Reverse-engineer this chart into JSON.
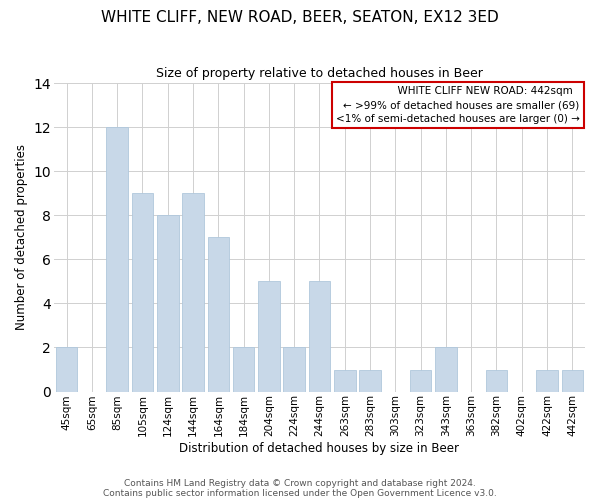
{
  "title": "WHITE CLIFF, NEW ROAD, BEER, SEATON, EX12 3ED",
  "subtitle": "Size of property relative to detached houses in Beer",
  "xlabel": "Distribution of detached houses by size in Beer",
  "ylabel": "Number of detached properties",
  "bar_color": "#c8d8e8",
  "bar_edgecolor": "#b0c8dc",
  "categories": [
    "45sqm",
    "65sqm",
    "85sqm",
    "105sqm",
    "124sqm",
    "144sqm",
    "164sqm",
    "184sqm",
    "204sqm",
    "224sqm",
    "244sqm",
    "263sqm",
    "283sqm",
    "303sqm",
    "323sqm",
    "343sqm",
    "363sqm",
    "382sqm",
    "402sqm",
    "422sqm",
    "442sqm"
  ],
  "values": [
    2,
    0,
    12,
    9,
    8,
    9,
    7,
    2,
    5,
    2,
    5,
    1,
    1,
    0,
    1,
    2,
    0,
    1,
    0,
    1,
    1
  ],
  "ylim": [
    0,
    14
  ],
  "yticks": [
    0,
    2,
    4,
    6,
    8,
    10,
    12,
    14
  ],
  "grid_color": "#d0d0d0",
  "legend_title": "WHITE CLIFF NEW ROAD: 442sqm",
  "legend_line1": "← >99% of detached houses are smaller (69)",
  "legend_line2": "<1% of semi-detached houses are larger (0) →",
  "legend_box_edgecolor": "#cc0000",
  "footnote1": "Contains HM Land Registry data © Crown copyright and database right 2024.",
  "footnote2": "Contains public sector information licensed under the Open Government Licence v3.0.",
  "title_fontsize": 11,
  "subtitle_fontsize": 9,
  "xlabel_fontsize": 8.5,
  "ylabel_fontsize": 8.5,
  "tick_fontsize": 7.5,
  "legend_fontsize": 7.5,
  "footnote_fontsize": 6.5
}
